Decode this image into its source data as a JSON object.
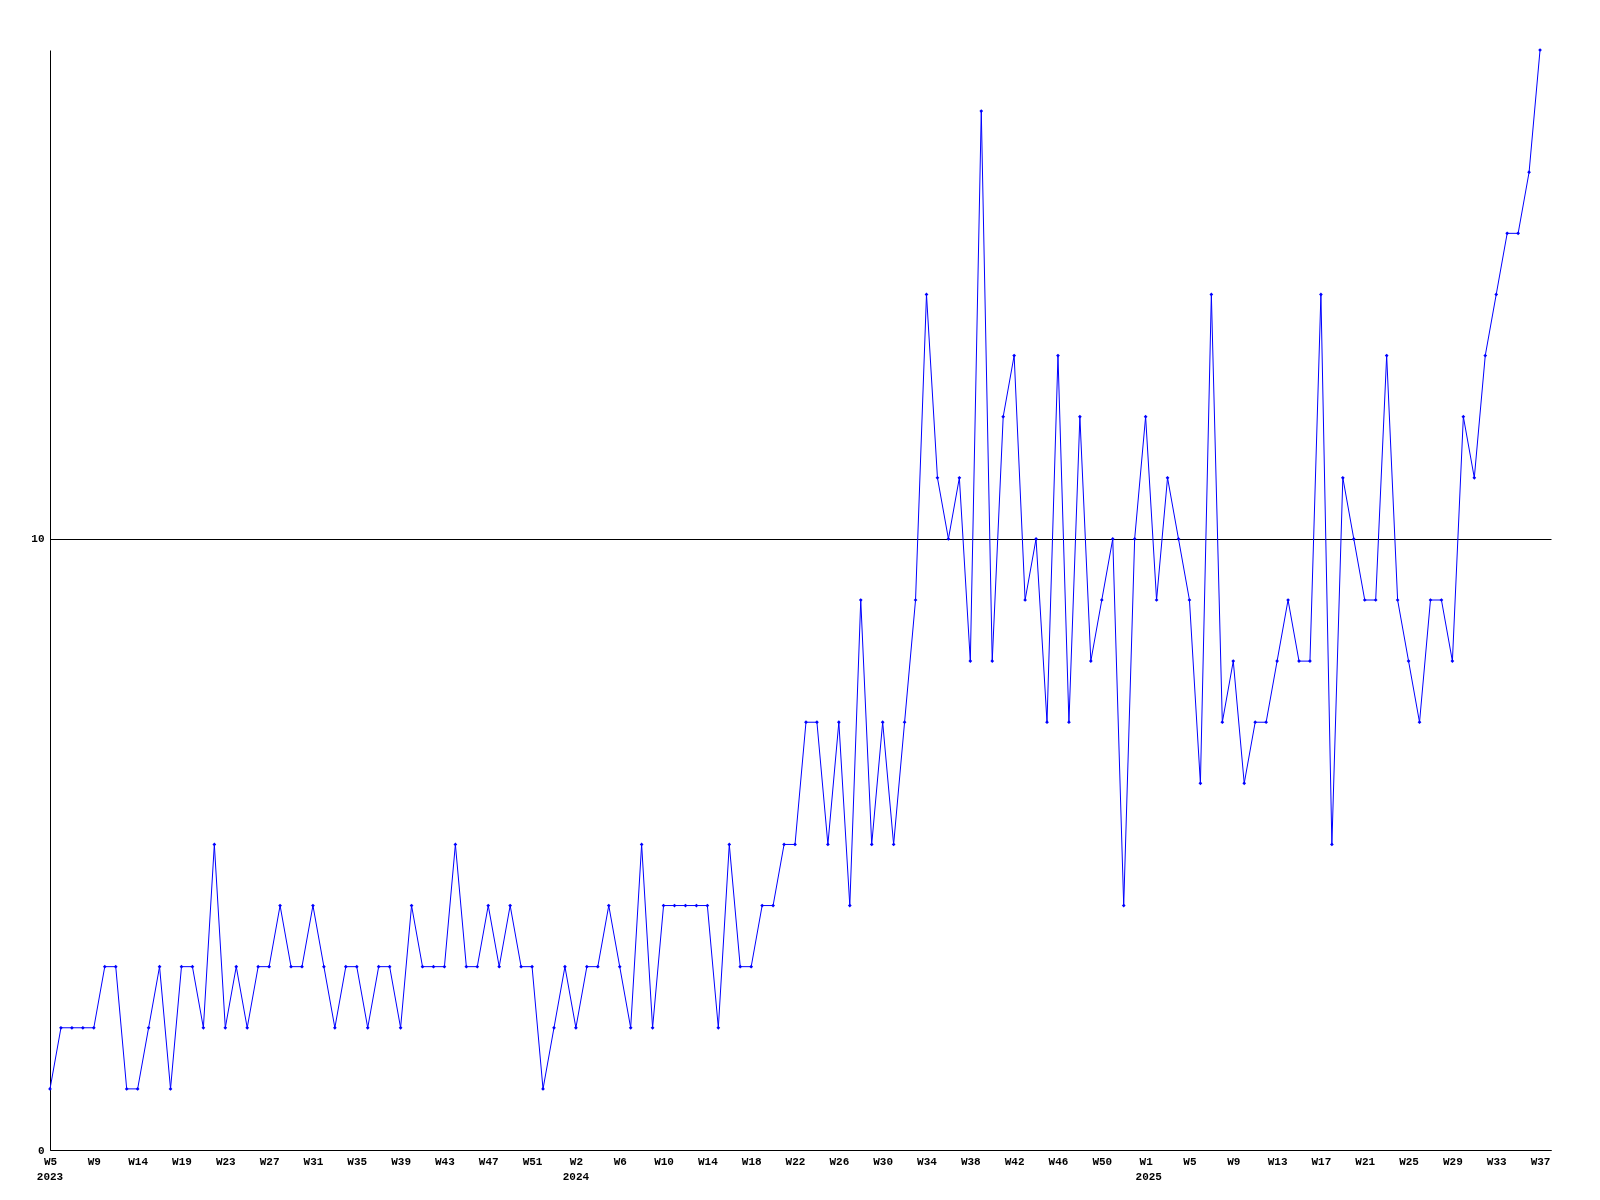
{
  "chart_data": {
    "type": "line",
    "x": [
      "2023-01-30",
      "2023-02-06",
      "2023-02-13",
      "2023-02-20",
      "2023-02-27",
      "2023-03-06",
      "2023-03-13",
      "2023-03-20",
      "2023-03-27",
      "2023-04-03",
      "2023-04-10",
      "2023-04-17",
      "2023-04-24",
      "2023-05-01",
      "2023-05-08",
      "2023-05-15",
      "2023-05-22",
      "2023-05-29",
      "2023-06-05",
      "2023-06-12",
      "2023-06-19",
      "2023-06-26",
      "2023-07-03",
      "2023-07-10",
      "2023-07-17",
      "2023-07-24",
      "2023-07-31",
      "2023-08-07",
      "2023-08-14",
      "2023-08-21",
      "2023-08-28",
      "2023-09-04",
      "2023-09-11",
      "2023-09-18",
      "2023-09-25",
      "2023-10-02",
      "2023-10-09",
      "2023-10-16",
      "2023-10-23",
      "2023-10-30",
      "2023-11-06",
      "2023-11-13",
      "2023-11-20",
      "2023-11-27",
      "2023-12-04",
      "2023-12-11",
      "2023-12-18",
      "2023-12-25",
      "2024-01-01",
      "2024-01-08",
      "2024-01-15",
      "2024-01-22",
      "2024-01-29",
      "2024-02-05",
      "2024-02-12",
      "2024-02-19",
      "2024-02-26",
      "2024-03-04",
      "2024-03-11",
      "2024-03-18",
      "2024-03-25",
      "2024-04-01",
      "2024-04-08",
      "2024-04-15",
      "2024-04-22",
      "2024-04-29",
      "2024-05-06",
      "2024-05-13",
      "2024-05-20",
      "2024-05-27",
      "2024-06-03",
      "2024-06-10",
      "2024-06-17",
      "2024-06-24",
      "2024-07-01",
      "2024-07-08",
      "2024-07-15",
      "2024-07-22",
      "2024-07-29",
      "2024-08-05",
      "2024-08-12",
      "2024-08-19",
      "2024-08-26",
      "2024-09-02",
      "2024-09-09",
      "2024-09-16",
      "2024-09-23",
      "2024-09-30",
      "2024-10-07",
      "2024-10-14",
      "2024-10-21",
      "2024-10-28",
      "2024-11-04",
      "2024-11-11",
      "2024-11-18",
      "2024-11-25",
      "2024-12-02",
      "2024-12-09",
      "2024-12-16",
      "2024-12-23",
      "2024-12-30",
      "2025-01-06",
      "2025-01-13",
      "2025-01-20",
      "2025-01-27",
      "2025-02-03",
      "2025-02-10",
      "2025-02-17",
      "2025-02-24",
      "2025-03-03",
      "2025-03-10",
      "2025-03-17",
      "2025-03-24",
      "2025-03-31",
      "2025-04-07",
      "2025-04-14",
      "2025-04-21",
      "2025-04-28",
      "2025-05-05",
      "2025-05-12",
      "2025-05-19",
      "2025-05-26",
      "2025-06-02",
      "2025-06-09",
      "2025-06-16",
      "2025-06-23",
      "2025-06-30",
      "2025-07-07",
      "2025-07-14",
      "2025-07-21",
      "2025-07-28",
      "2025-08-04",
      "2025-08-11",
      "2025-08-18",
      "2025-08-25",
      "2025-09-01",
      "2025-09-08"
    ],
    "series": [
      {
        "color": "#0000ff",
        "values": [
          1,
          2,
          2,
          2,
          2,
          3,
          3,
          1,
          1,
          2,
          3,
          1,
          3,
          3,
          2,
          5,
          2,
          3,
          2,
          3,
          3,
          4,
          3,
          3,
          4,
          3,
          2,
          3,
          3,
          2,
          3,
          3,
          2,
          4,
          3,
          3,
          3,
          5,
          3,
          3,
          4,
          3,
          4,
          3,
          3,
          1,
          2,
          3,
          2,
          3,
          3,
          4,
          3,
          2,
          5,
          2,
          4,
          4,
          4,
          4,
          4,
          2,
          5,
          3,
          3,
          4,
          4,
          5,
          5,
          7,
          7,
          5,
          7,
          4,
          9,
          5,
          7,
          5,
          7,
          9,
          14,
          11,
          10,
          11,
          8,
          17,
          8,
          12,
          13,
          9,
          10,
          7,
          13,
          7,
          12,
          8,
          9,
          10,
          4,
          10,
          12,
          9,
          11,
          10,
          9,
          6,
          14,
          7,
          8,
          6,
          7,
          7,
          8,
          9,
          8,
          8,
          14,
          5,
          11,
          10,
          9,
          9,
          13,
          9,
          8,
          7,
          9,
          9,
          8,
          12,
          11,
          13,
          14,
          15,
          15,
          16,
          18
        ]
      }
    ],
    "xlim": [
      "2023-01-30",
      "2025-09-15"
    ],
    "xticks": [
      {
        "value": "2023-01-30",
        "label": "W5"
      },
      {
        "value": "2023-02-27",
        "label": "W9"
      },
      {
        "value": "2023-03-27",
        "label": "W14"
      },
      {
        "value": "2023-04-24",
        "label": "W19"
      },
      {
        "value": "2023-05-22",
        "label": "W23"
      },
      {
        "value": "2023-06-19",
        "label": "W27"
      },
      {
        "value": "2023-07-17",
        "label": "W31"
      },
      {
        "value": "2023-08-14",
        "label": "W35"
      },
      {
        "value": "2023-09-11",
        "label": "W39"
      },
      {
        "value": "2023-10-09",
        "label": "W43"
      },
      {
        "value": "2023-11-06",
        "label": "W47"
      },
      {
        "value": "2023-12-04",
        "label": "W51"
      },
      {
        "value": "2024-01-01",
        "label": "W2"
      },
      {
        "value": "2024-01-29",
        "label": "W6"
      },
      {
        "value": "2024-02-26",
        "label": "W10"
      },
      {
        "value": "2024-03-25",
        "label": "W14"
      },
      {
        "value": "2024-04-22",
        "label": "W18"
      },
      {
        "value": "2024-05-20",
        "label": "W22"
      },
      {
        "value": "2024-06-17",
        "label": "W26"
      },
      {
        "value": "2024-07-15",
        "label": "W30"
      },
      {
        "value": "2024-08-12",
        "label": "W34"
      },
      {
        "value": "2024-09-09",
        "label": "W38"
      },
      {
        "value": "2024-10-07",
        "label": "W42"
      },
      {
        "value": "2024-11-04",
        "label": "W46"
      },
      {
        "value": "2024-12-02",
        "label": "W50"
      },
      {
        "value": "2024-12-30",
        "label": "W1"
      },
      {
        "value": "2025-01-27",
        "label": "W5"
      },
      {
        "value": "2025-02-24",
        "label": "W9"
      },
      {
        "value": "2025-03-24",
        "label": "W13"
      },
      {
        "value": "2025-04-21",
        "label": "W17"
      },
      {
        "value": "2025-05-19",
        "label": "W21"
      },
      {
        "value": "2025-06-16",
        "label": "W25"
      },
      {
        "value": "2025-07-14",
        "label": "W29"
      },
      {
        "value": "2025-08-11",
        "label": "W33"
      },
      {
        "value": "2025-09-08",
        "label": "W37"
      }
    ],
    "ylim": [
      0,
      18
    ],
    "yticks": [
      0,
      10
    ],
    "grid": "y",
    "marker": "diamond",
    "line_style": "solid",
    "annotations": [
      "2023",
      "2024",
      "2025"
    ]
  }
}
